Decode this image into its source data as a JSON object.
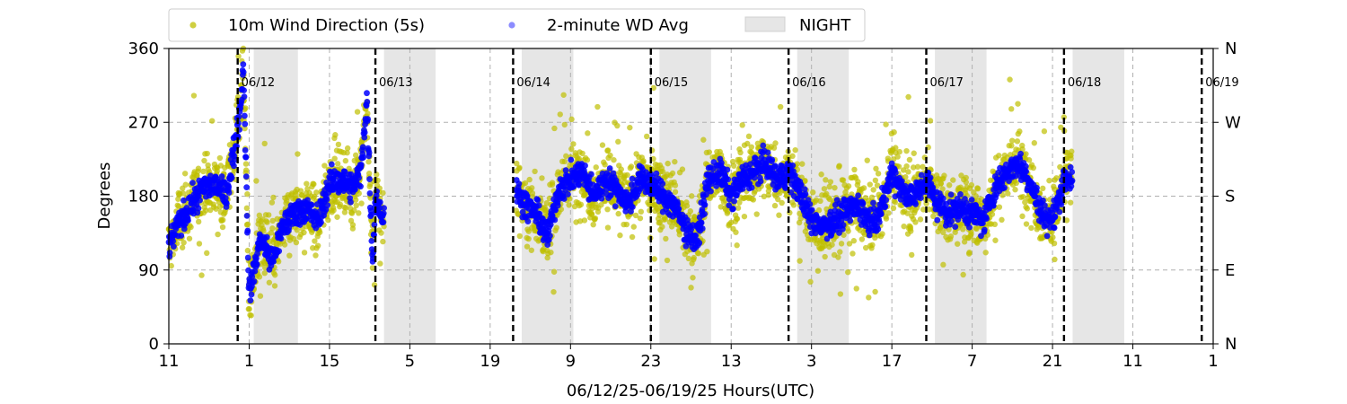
{
  "chart_data": {
    "type": "scatter",
    "xlabel": "06/12/25-06/19/25  Hours(UTC)",
    "ylabel": "Degrees",
    "xlim": [
      0,
      182
    ],
    "ylim": [
      0,
      360
    ],
    "x_ticks": [
      {
        "x": 0,
        "label": "11"
      },
      {
        "x": 14,
        "label": "1"
      },
      {
        "x": 28,
        "label": "15"
      },
      {
        "x": 42,
        "label": "5"
      },
      {
        "x": 56,
        "label": "19"
      },
      {
        "x": 70,
        "label": "9"
      },
      {
        "x": 84,
        "label": "23"
      },
      {
        "x": 98,
        "label": "13"
      },
      {
        "x": 112,
        "label": "3"
      },
      {
        "x": 126,
        "label": "17"
      },
      {
        "x": 140,
        "label": "7"
      },
      {
        "x": 154,
        "label": "21"
      },
      {
        "x": 168,
        "label": "11"
      },
      {
        "x": 182,
        "label": "1"
      }
    ],
    "y_ticks": [
      0,
      90,
      180,
      270,
      360
    ],
    "y2_ticks": [
      {
        "y": 0,
        "label": "N"
      },
      {
        "y": 90,
        "label": "E"
      },
      {
        "y": 180,
        "label": "S"
      },
      {
        "y": 270,
        "label": "W"
      },
      {
        "y": 360,
        "label": "N"
      }
    ],
    "grid": true,
    "legend_placement": "top",
    "legend": [
      {
        "label": "10m Wind Direction (5s)",
        "kind": "point",
        "color": "#bfbf00"
      },
      {
        "label": "2-minute WD Avg",
        "kind": "point",
        "color": "#6666ff"
      },
      {
        "label": "NIGHT",
        "kind": "patch",
        "color": "#e6e6e6"
      }
    ],
    "night_periods": [
      [
        14.8,
        22.5
      ],
      [
        37.5,
        46.5
      ],
      [
        61.5,
        70.5
      ],
      [
        85.5,
        94.5
      ],
      [
        109.5,
        118.5
      ],
      [
        133.5,
        142.5
      ],
      [
        157.5,
        166.5
      ]
    ],
    "day_boundaries": [
      {
        "x": 12,
        "label": "06/12"
      },
      {
        "x": 36,
        "label": "06/13"
      },
      {
        "x": 60,
        "label": "06/14"
      },
      {
        "x": 84,
        "label": "06/15"
      },
      {
        "x": 108,
        "label": "06/16"
      },
      {
        "x": 132,
        "label": "06/17"
      },
      {
        "x": 156,
        "label": "06/18"
      },
      {
        "x": 180,
        "label": "06/19"
      }
    ],
    "data_gap": [
      37.5,
      60.5
    ],
    "series": [
      {
        "name": "2-minute WD Avg",
        "color": "#0000ff",
        "x": [
          0,
          2,
          4,
          6,
          8,
          10,
          11.5,
          12.5,
          13,
          14,
          16,
          18,
          20,
          22,
          24,
          26,
          28,
          30,
          32,
          33.5,
          34.5,
          35.5,
          36,
          37.5,
          60.5,
          62,
          64,
          66,
          68,
          70,
          72,
          74,
          76,
          78,
          80,
          82,
          84,
          86,
          88,
          90,
          92,
          94,
          96,
          98,
          100,
          102,
          104,
          106,
          108,
          110,
          112,
          114,
          116,
          118,
          120,
          122,
          124,
          126,
          128,
          130,
          132,
          134,
          136,
          138,
          140,
          142,
          144,
          146,
          148,
          150,
          152,
          154,
          156,
          157.5
        ],
        "y": [
          120,
          150,
          170,
          190,
          195,
          180,
          240,
          290,
          340,
          60,
          130,
          100,
          145,
          160,
          165,
          150,
          195,
          200,
          190,
          210,
          300,
          100,
          180,
          150,
          190,
          170,
          160,
          130,
          190,
          200,
          210,
          180,
          200,
          190,
          170,
          200,
          195,
          180,
          170,
          140,
          125,
          200,
          210,
          180,
          200,
          210,
          220,
          200,
          210,
          185,
          150,
          145,
          150,
          160,
          170,
          150,
          160,
          210,
          185,
          180,
          200,
          170,
          160,
          165,
          160,
          150,
          190,
          210,
          220,
          200,
          160,
          150,
          200,
          205
        ]
      }
    ],
    "scatter_note_color": "#bfbf00"
  }
}
